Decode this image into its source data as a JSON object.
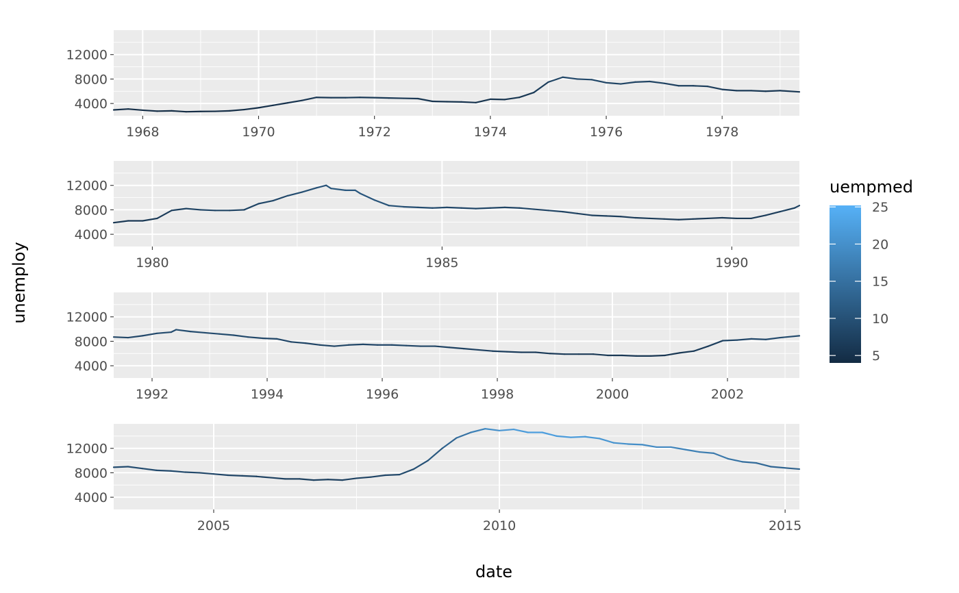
{
  "chart_data": {
    "type": "line",
    "xlabel": "date",
    "ylabel": "unemploy",
    "y_ticks": [
      "4000",
      "8000",
      "12000"
    ],
    "ylim": [
      2000,
      16000
    ],
    "color_legend": {
      "title": "uempmed",
      "ticks": [
        "5",
        "10",
        "15",
        "20",
        "25"
      ],
      "range": [
        4,
        25.2
      ],
      "low_color": "#132B43",
      "high_color": "#56B1F7"
    },
    "panels": [
      {
        "xlim": [
          "1967-07",
          "1979-05"
        ],
        "x_ticks": [
          "1968",
          "1970",
          "1972",
          "1974",
          "1976",
          "1978"
        ],
        "points": [
          [
            "1967-07",
            2950,
            4.5
          ],
          [
            "1967-10",
            3100,
            4.6
          ],
          [
            "1968-01",
            2900,
            4.4
          ],
          [
            "1968-04",
            2750,
            4.2
          ],
          [
            "1968-07",
            2800,
            4.3
          ],
          [
            "1968-10",
            2650,
            4.2
          ],
          [
            "1969-01",
            2700,
            4.2
          ],
          [
            "1969-04",
            2720,
            4.3
          ],
          [
            "1969-07",
            2800,
            4.3
          ],
          [
            "1969-10",
            3000,
            4.5
          ],
          [
            "1970-01",
            3300,
            4.8
          ],
          [
            "1970-04",
            3700,
            5.0
          ],
          [
            "1970-07",
            4100,
            5.3
          ],
          [
            "1970-10",
            4500,
            5.6
          ],
          [
            "1971-01",
            5000,
            6.0
          ],
          [
            "1971-04",
            4950,
            6.2
          ],
          [
            "1971-07",
            4950,
            6.3
          ],
          [
            "1971-10",
            5000,
            6.4
          ],
          [
            "1972-01",
            4950,
            6.3
          ],
          [
            "1972-04",
            4900,
            6.2
          ],
          [
            "1972-07",
            4850,
            6.0
          ],
          [
            "1972-10",
            4800,
            5.9
          ],
          [
            "1973-01",
            4350,
            5.5
          ],
          [
            "1973-04",
            4300,
            5.4
          ],
          [
            "1973-07",
            4250,
            5.3
          ],
          [
            "1973-10",
            4150,
            5.2
          ],
          [
            "1974-01",
            4700,
            5.5
          ],
          [
            "1974-04",
            4650,
            5.6
          ],
          [
            "1974-07",
            5000,
            5.8
          ],
          [
            "1974-10",
            5800,
            6.2
          ],
          [
            "1975-01",
            7500,
            7.5
          ],
          [
            "1975-04",
            8300,
            8.3
          ],
          [
            "1975-07",
            8000,
            8.6
          ],
          [
            "1975-10",
            7900,
            8.4
          ],
          [
            "1976-01",
            7400,
            8.0
          ],
          [
            "1976-04",
            7200,
            7.8
          ],
          [
            "1976-07",
            7500,
            7.8
          ],
          [
            "1976-10",
            7600,
            7.7
          ],
          [
            "1977-01",
            7300,
            7.5
          ],
          [
            "1977-04",
            6900,
            7.3
          ],
          [
            "1977-07",
            6900,
            7.1
          ],
          [
            "1977-10",
            6800,
            6.9
          ],
          [
            "1978-01",
            6300,
            6.6
          ],
          [
            "1978-04",
            6100,
            6.3
          ],
          [
            "1978-07",
            6100,
            6.1
          ],
          [
            "1978-10",
            6000,
            5.9
          ],
          [
            "1979-01",
            6100,
            5.9
          ],
          [
            "1979-05",
            5900,
            5.8
          ]
        ]
      },
      {
        "xlim": [
          "1979-05",
          "1991-03"
        ],
        "x_ticks": [
          "1980",
          "1985",
          "1990"
        ],
        "points": [
          [
            "1979-05",
            5900,
            5.8
          ],
          [
            "1979-08",
            6200,
            5.9
          ],
          [
            "1979-11",
            6200,
            6.0
          ],
          [
            "1980-02",
            6600,
            6.3
          ],
          [
            "1980-05",
            7900,
            6.9
          ],
          [
            "1980-08",
            8200,
            7.6
          ],
          [
            "1980-11",
            8000,
            7.9
          ],
          [
            "1981-02",
            7900,
            8.0
          ],
          [
            "1981-05",
            7900,
            7.8
          ],
          [
            "1981-08",
            8000,
            7.8
          ],
          [
            "1981-11",
            9000,
            8.1
          ],
          [
            "1982-02",
            9500,
            8.4
          ],
          [
            "1982-05",
            10300,
            8.9
          ],
          [
            "1982-08",
            10900,
            9.4
          ],
          [
            "1982-11",
            11600,
            10.0
          ],
          [
            "1983-01",
            12000,
            10.4
          ],
          [
            "1983-02",
            11500,
            10.6
          ],
          [
            "1983-05",
            11200,
            10.9
          ],
          [
            "1983-07",
            11200,
            10.9
          ],
          [
            "1983-08",
            10700,
            10.9
          ],
          [
            "1983-11",
            9600,
            10.5
          ],
          [
            "1984-02",
            8700,
            10.0
          ],
          [
            "1984-05",
            8500,
            9.6
          ],
          [
            "1984-08",
            8400,
            9.2
          ],
          [
            "1984-11",
            8300,
            8.9
          ],
          [
            "1985-02",
            8400,
            8.6
          ],
          [
            "1985-05",
            8300,
            8.4
          ],
          [
            "1985-08",
            8200,
            8.2
          ],
          [
            "1985-11",
            8300,
            8.1
          ],
          [
            "1986-02",
            8400,
            8.0
          ],
          [
            "1986-05",
            8300,
            8.0
          ],
          [
            "1986-08",
            8100,
            7.9
          ],
          [
            "1986-11",
            7900,
            7.8
          ],
          [
            "1987-02",
            7700,
            7.7
          ],
          [
            "1987-05",
            7400,
            7.5
          ],
          [
            "1987-08",
            7100,
            7.2
          ],
          [
            "1987-11",
            7000,
            7.0
          ],
          [
            "1988-02",
            6900,
            6.9
          ],
          [
            "1988-05",
            6700,
            6.6
          ],
          [
            "1988-08",
            6600,
            6.4
          ],
          [
            "1988-11",
            6500,
            6.3
          ],
          [
            "1989-02",
            6400,
            6.2
          ],
          [
            "1989-05",
            6500,
            6.1
          ],
          [
            "1989-08",
            6600,
            6.1
          ],
          [
            "1989-11",
            6700,
            6.1
          ],
          [
            "1990-02",
            6600,
            6.1
          ],
          [
            "1990-05",
            6600,
            6.2
          ],
          [
            "1990-08",
            7100,
            6.5
          ],
          [
            "1990-11",
            7700,
            7.0
          ],
          [
            "1991-02",
            8300,
            7.6
          ],
          [
            "1991-03",
            8700,
            8.0
          ]
        ]
      },
      {
        "xlim": [
          "1991-05",
          "2003-04"
        ],
        "x_ticks": [
          "1992",
          "1994",
          "1996",
          "1998",
          "2000",
          "2002"
        ],
        "points": [
          [
            "1991-05",
            8700,
            8.0
          ],
          [
            "1991-08",
            8600,
            8.2
          ],
          [
            "1991-11",
            8900,
            8.5
          ],
          [
            "1992-02",
            9300,
            8.8
          ],
          [
            "1992-05",
            9500,
            9.0
          ],
          [
            "1992-06",
            9900,
            9.2
          ],
          [
            "1992-09",
            9600,
            9.1
          ],
          [
            "1992-12",
            9400,
            9.0
          ],
          [
            "1993-03",
            9200,
            8.9
          ],
          [
            "1993-06",
            9000,
            8.8
          ],
          [
            "1993-09",
            8700,
            8.6
          ],
          [
            "1993-12",
            8500,
            8.4
          ],
          [
            "1994-03",
            8400,
            8.3
          ],
          [
            "1994-06",
            7900,
            8.3
          ],
          [
            "1994-09",
            7700,
            8.2
          ],
          [
            "1994-12",
            7400,
            8.1
          ],
          [
            "1995-03",
            7200,
            8.0
          ],
          [
            "1995-06",
            7400,
            8.1
          ],
          [
            "1995-09",
            7500,
            8.3
          ],
          [
            "1995-12",
            7400,
            8.3
          ],
          [
            "1996-03",
            7400,
            8.3
          ],
          [
            "1996-06",
            7300,
            8.2
          ],
          [
            "1996-09",
            7200,
            8.0
          ],
          [
            "1996-12",
            7200,
            7.8
          ],
          [
            "1997-03",
            7000,
            7.7
          ],
          [
            "1997-06",
            6800,
            7.6
          ],
          [
            "1997-09",
            6600,
            7.5
          ],
          [
            "1997-12",
            6400,
            7.3
          ],
          [
            "1998-03",
            6300,
            7.0
          ],
          [
            "1998-06",
            6200,
            6.8
          ],
          [
            "1998-09",
            6200,
            6.6
          ],
          [
            "1998-12",
            6000,
            6.5
          ],
          [
            "1999-03",
            5900,
            6.4
          ],
          [
            "1999-06",
            5900,
            6.3
          ],
          [
            "1999-09",
            5900,
            6.2
          ],
          [
            "1999-12",
            5700,
            6.1
          ],
          [
            "2000-03",
            5700,
            6.0
          ],
          [
            "2000-06",
            5600,
            5.9
          ],
          [
            "2000-09",
            5600,
            5.8
          ],
          [
            "2000-12",
            5700,
            5.8
          ],
          [
            "2001-03",
            6100,
            6.0
          ],
          [
            "2001-06",
            6400,
            6.3
          ],
          [
            "2001-09",
            7200,
            6.8
          ],
          [
            "2001-12",
            8100,
            7.6
          ],
          [
            "2002-03",
            8200,
            8.2
          ],
          [
            "2002-06",
            8400,
            8.5
          ],
          [
            "2002-09",
            8300,
            8.7
          ],
          [
            "2002-12",
            8600,
            8.9
          ],
          [
            "2003-04",
            8900,
            9.1
          ]
        ]
      },
      {
        "xlim": [
          "2003-04",
          "2015-04"
        ],
        "x_ticks": [
          "2005",
          "2010",
          "2015"
        ],
        "points": [
          [
            "2003-04",
            8900,
            9.1
          ],
          [
            "2003-07",
            9000,
            9.3
          ],
          [
            "2003-10",
            8700,
            9.2
          ],
          [
            "2004-01",
            8400,
            9.0
          ],
          [
            "2004-04",
            8300,
            8.9
          ],
          [
            "2004-07",
            8100,
            8.8
          ],
          [
            "2004-10",
            8000,
            8.6
          ],
          [
            "2005-01",
            7800,
            8.4
          ],
          [
            "2005-04",
            7600,
            8.2
          ],
          [
            "2005-07",
            7500,
            8.0
          ],
          [
            "2005-10",
            7400,
            7.8
          ],
          [
            "2006-01",
            7200,
            7.6
          ],
          [
            "2006-04",
            7000,
            7.4
          ],
          [
            "2006-07",
            7000,
            7.3
          ],
          [
            "2006-10",
            6800,
            7.2
          ],
          [
            "2007-01",
            6900,
            7.3
          ],
          [
            "2007-04",
            6800,
            7.4
          ],
          [
            "2007-07",
            7100,
            7.6
          ],
          [
            "2007-10",
            7300,
            7.9
          ],
          [
            "2008-01",
            7600,
            8.3
          ],
          [
            "2008-04",
            7700,
            8.6
          ],
          [
            "2008-07",
            8600,
            9.4
          ],
          [
            "2008-10",
            10000,
            10.3
          ],
          [
            "2009-01",
            12000,
            11.8
          ],
          [
            "2009-04",
            13700,
            14.0
          ],
          [
            "2009-07",
            14600,
            16.5
          ],
          [
            "2009-10",
            15200,
            19.0
          ],
          [
            "2010-01",
            14900,
            20.5
          ],
          [
            "2010-04",
            15100,
            21.5
          ],
          [
            "2010-07",
            14600,
            22.0
          ],
          [
            "2010-10",
            14600,
            22.5
          ],
          [
            "2011-01",
            14000,
            22.0
          ],
          [
            "2011-04",
            13800,
            21.8
          ],
          [
            "2011-07",
            13900,
            21.5
          ],
          [
            "2011-10",
            13600,
            21.2
          ],
          [
            "2012-01",
            12900,
            20.5
          ],
          [
            "2012-04",
            12700,
            19.8
          ],
          [
            "2012-07",
            12600,
            19.5
          ],
          [
            "2012-10",
            12200,
            19.0
          ],
          [
            "2013-01",
            12200,
            18.5
          ],
          [
            "2013-04",
            11800,
            17.8
          ],
          [
            "2013-07",
            11400,
            17.0
          ],
          [
            "2013-10",
            11200,
            16.5
          ],
          [
            "2014-01",
            10300,
            16.0
          ],
          [
            "2014-04",
            9800,
            15.0
          ],
          [
            "2014-07",
            9600,
            14.0
          ],
          [
            "2014-10",
            9000,
            13.5
          ],
          [
            "2015-01",
            8800,
            13.0
          ],
          [
            "2015-04",
            8600,
            12.5
          ]
        ]
      }
    ]
  }
}
